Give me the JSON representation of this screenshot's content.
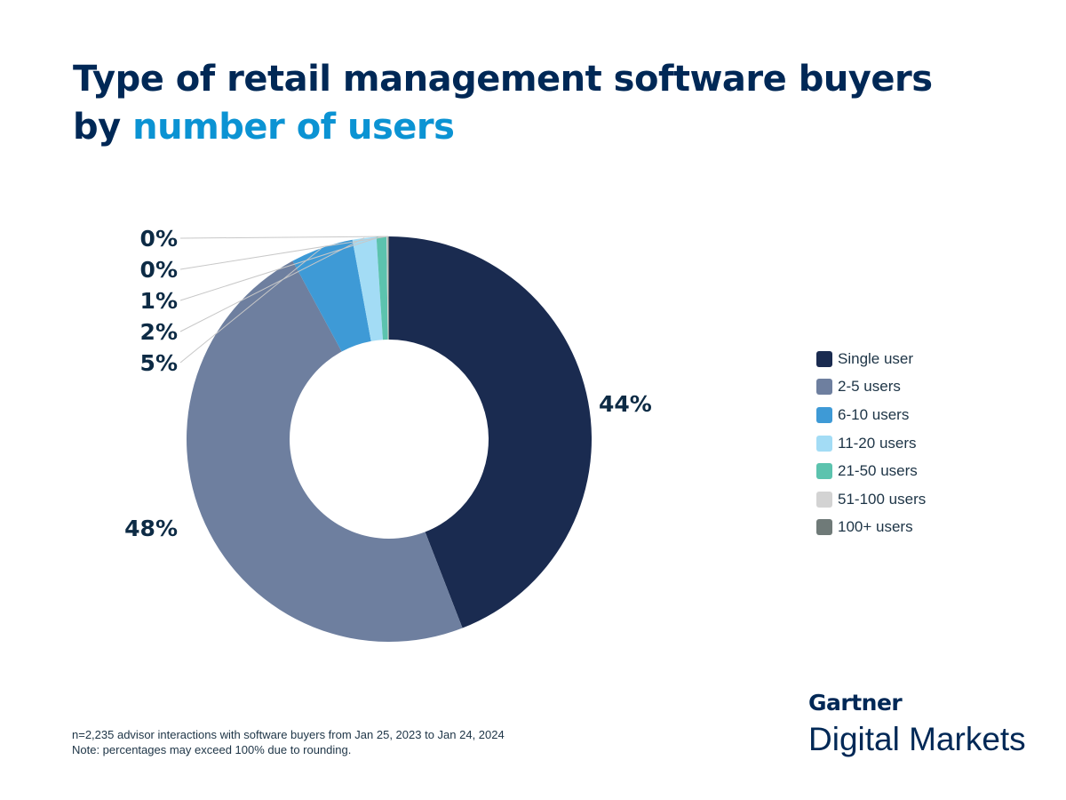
{
  "title": {
    "line1": "Type of retail management software buyers",
    "line2_prefix": "by ",
    "line2_highlight": "number of users"
  },
  "chart_data": {
    "type": "pie",
    "donut": true,
    "categories": [
      "Single user",
      "2-5 users",
      "6-10 users",
      "11-20 users",
      "21-50 users",
      "51-100 users",
      "100+ users"
    ],
    "values": [
      44.1,
      48.0,
      5.0,
      1.9,
      0.8,
      0.1,
      0.1
    ],
    "data_labels": [
      "44%",
      "48%",
      "5%",
      "2%",
      "1%",
      "0%",
      "0%"
    ],
    "colors": [
      "#1a2b50",
      "#6e7f9f",
      "#3e9ad6",
      "#a3dcf5",
      "#5cc3ae",
      "#d3d3d3",
      "#6f7a78"
    ],
    "legend": "right"
  },
  "footnote": {
    "line1": "n=2,235 advisor interactions with software buyers from Jan 25, 2023 to Jan 24, 2024",
    "line2": "Note: percentages may exceed 100% due to rounding."
  },
  "logo": {
    "brand": "Gartner",
    "product": "Digital Markets"
  }
}
